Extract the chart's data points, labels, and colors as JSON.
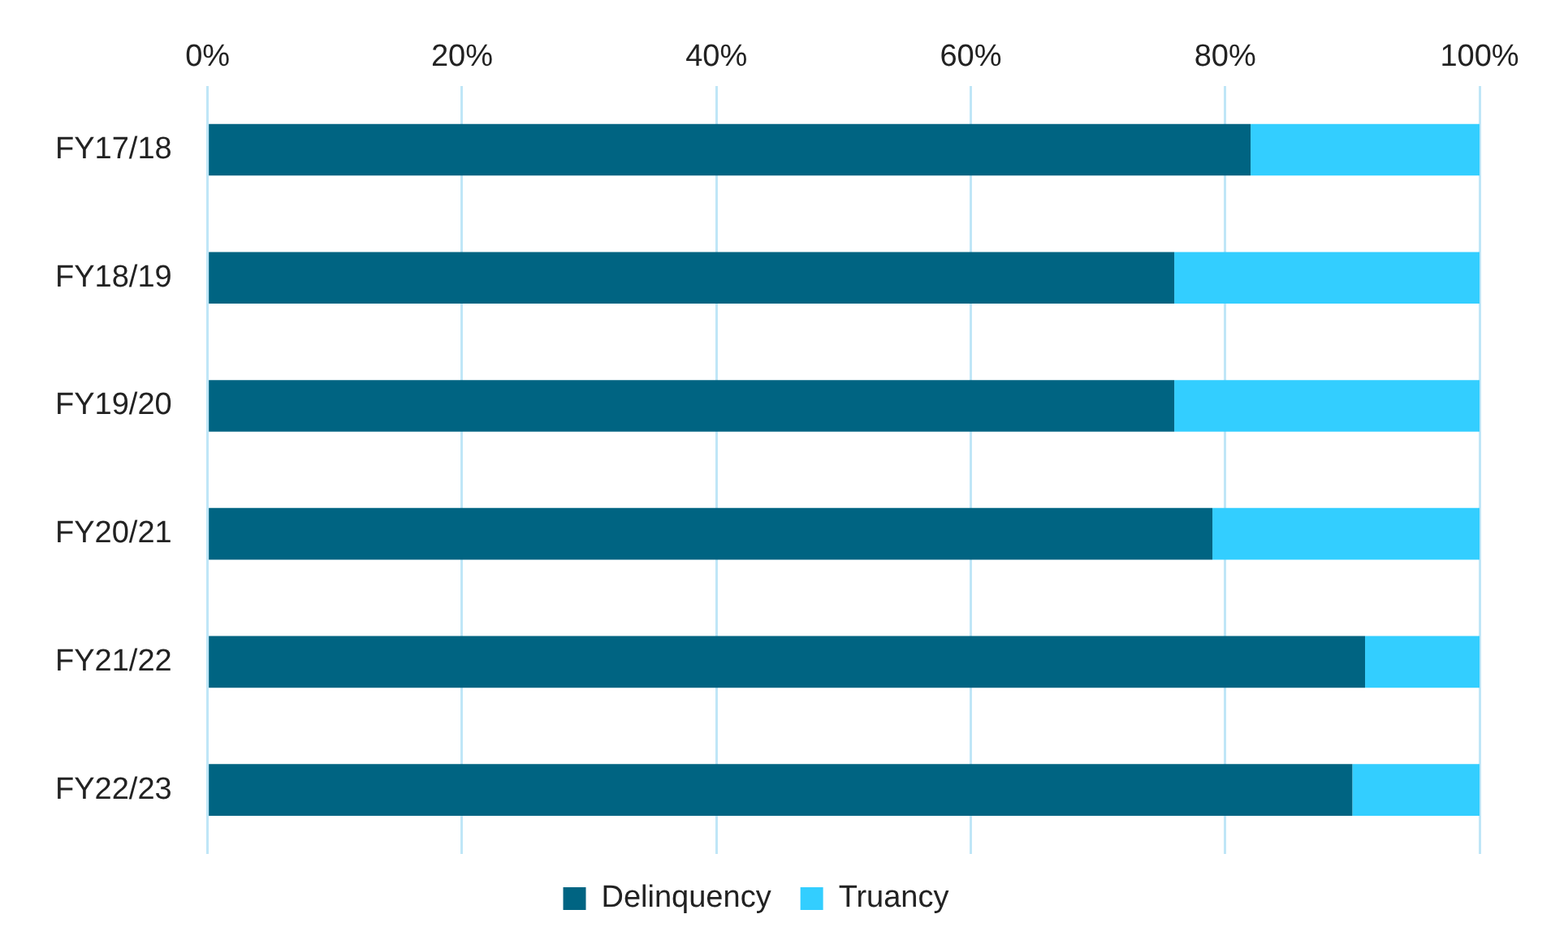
{
  "chart_data": {
    "type": "bar",
    "orientation": "horizontal",
    "stacked": true,
    "categories": [
      "FY17/18",
      "FY18/19",
      "FY19/20",
      "FY20/21",
      "FY21/22",
      "FY22/23"
    ],
    "series": [
      {
        "name": "Delinquency",
        "color": "#006482",
        "values": [
          82,
          76,
          76,
          79,
          91,
          90
        ]
      },
      {
        "name": "Truancy",
        "color": "#33ceff",
        "values": [
          18,
          24,
          24,
          21,
          9,
          10
        ]
      }
    ],
    "xlim": [
      0,
      100
    ],
    "xticks": [
      {
        "value": 0,
        "label": "0%"
      },
      {
        "value": 20,
        "label": "20%"
      },
      {
        "value": 40,
        "label": "40%"
      },
      {
        "value": 60,
        "label": "60%"
      },
      {
        "value": 80,
        "label": "80%"
      },
      {
        "value": 100,
        "label": "100%"
      }
    ],
    "grid": "x",
    "legend": "bottom"
  }
}
